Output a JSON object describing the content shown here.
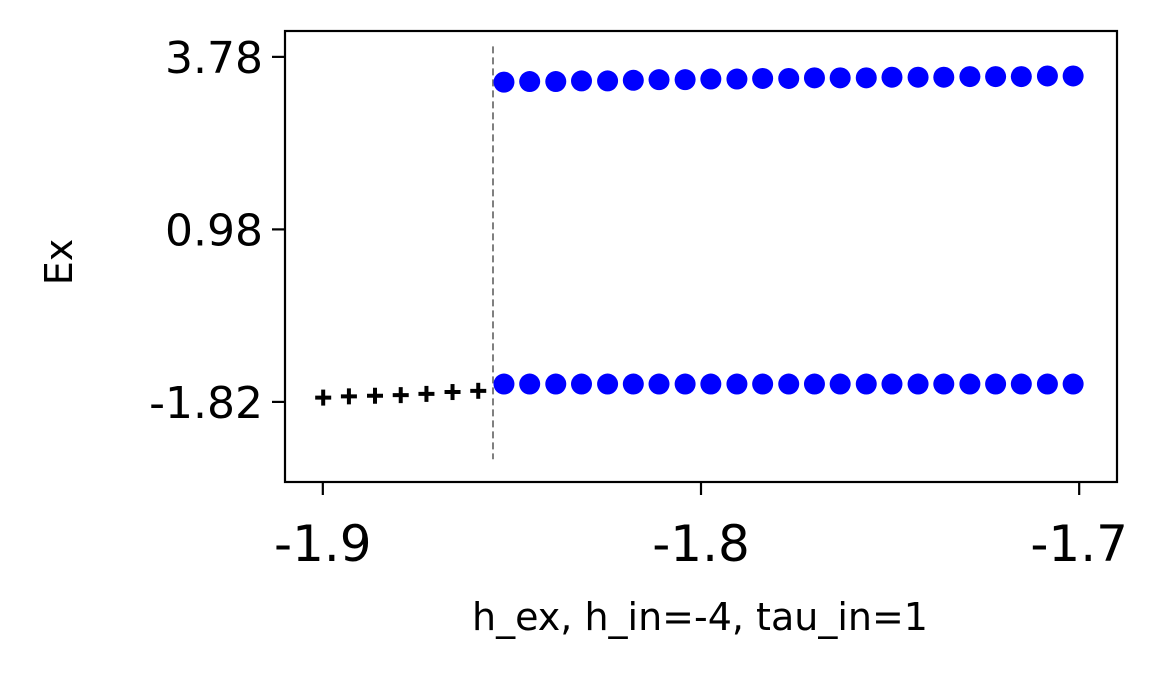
{
  "chart_data": {
    "type": "scatter",
    "title": "",
    "xlabel": "h_ex, h_in=-4, tau_in=1",
    "ylabel": "Ex",
    "xlim": [
      -1.91,
      -1.69
    ],
    "ylim": [
      -3.12,
      4.2
    ],
    "xticks": [
      -1.9,
      -1.8,
      -1.7
    ],
    "xtick_labels": [
      "-1.9",
      "-1.8",
      "-1.7"
    ],
    "yticks": [
      3.78,
      0.98,
      -1.82
    ],
    "ytick_labels": [
      "3.78",
      "0.98",
      "-1.82"
    ],
    "grid": false,
    "legend": "none",
    "vline": {
      "x": -1.855,
      "ymin": -2.75,
      "ymax": 3.95,
      "color": "#808080",
      "style": "dashed"
    },
    "series": [
      {
        "marker": "plus",
        "color": "#000000",
        "points": [
          [
            -1.8999,
            -1.75
          ],
          [
            -1.8931,
            -1.73
          ],
          [
            -1.8862,
            -1.72
          ],
          [
            -1.8794,
            -1.71
          ],
          [
            -1.8726,
            -1.69
          ],
          [
            -1.8657,
            -1.66
          ],
          [
            -1.8589,
            -1.64
          ]
        ]
      },
      {
        "marker": "circle",
        "color": "#0000ff",
        "points": [
          [
            -1.8521,
            3.37
          ],
          [
            -1.8453,
            3.38
          ],
          [
            -1.8384,
            3.38
          ],
          [
            -1.8316,
            3.39
          ],
          [
            -1.8247,
            3.39
          ],
          [
            -1.8179,
            3.4
          ],
          [
            -1.8111,
            3.41
          ],
          [
            -1.8042,
            3.41
          ],
          [
            -1.7974,
            3.42
          ],
          [
            -1.7905,
            3.42
          ],
          [
            -1.7837,
            3.43
          ],
          [
            -1.7768,
            3.43
          ],
          [
            -1.77,
            3.44
          ],
          [
            -1.7632,
            3.44
          ],
          [
            -1.7563,
            3.44
          ],
          [
            -1.7495,
            3.45
          ],
          [
            -1.7426,
            3.45
          ],
          [
            -1.7358,
            3.45
          ],
          [
            -1.7289,
            3.46
          ],
          [
            -1.7221,
            3.46
          ],
          [
            -1.7153,
            3.46
          ],
          [
            -1.7084,
            3.47
          ],
          [
            -1.7016,
            3.47
          ]
        ]
      },
      {
        "marker": "circle",
        "color": "#0000ff",
        "points": [
          [
            -1.8521,
            -1.53
          ],
          [
            -1.8453,
            -1.53
          ],
          [
            -1.8384,
            -1.53
          ],
          [
            -1.8316,
            -1.53
          ],
          [
            -1.8247,
            -1.53
          ],
          [
            -1.8179,
            -1.53
          ],
          [
            -1.8111,
            -1.53
          ],
          [
            -1.8042,
            -1.53
          ],
          [
            -1.7974,
            -1.53
          ],
          [
            -1.7905,
            -1.53
          ],
          [
            -1.7837,
            -1.53
          ],
          [
            -1.7768,
            -1.53
          ],
          [
            -1.77,
            -1.53
          ],
          [
            -1.7632,
            -1.53
          ],
          [
            -1.7563,
            -1.53
          ],
          [
            -1.7495,
            -1.53
          ],
          [
            -1.7426,
            -1.53
          ],
          [
            -1.7358,
            -1.53
          ],
          [
            -1.7289,
            -1.53
          ],
          [
            -1.7221,
            -1.53
          ],
          [
            -1.7153,
            -1.53
          ],
          [
            -1.7084,
            -1.53
          ],
          [
            -1.7016,
            -1.53
          ]
        ]
      }
    ]
  }
}
